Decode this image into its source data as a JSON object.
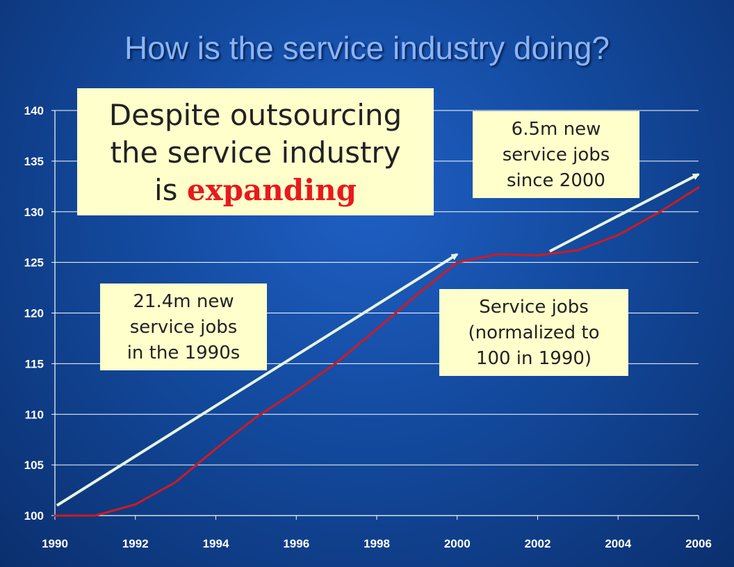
{
  "slide": {
    "title": "How is the service industry doing?"
  },
  "callouts": {
    "headline_line1": "Despite outsourcing",
    "headline_line2": "the service industry",
    "headline_line3_prefix": "is ",
    "headline_emphasis": "expanding",
    "nineties_line1": "21.4m new",
    "nineties_line2": "service jobs",
    "nineties_line3": "in the 1990s",
    "since2000_line1": "6.5m new",
    "since2000_line2": "service jobs",
    "since2000_line3": "since 2000",
    "series_line1": "Service jobs",
    "series_line2": "(normalized to",
    "series_line3": "100 in 1990)"
  },
  "colors": {
    "series_line": "#d11a1f",
    "trend_arrow": "#e8f5e0",
    "gridline": "#ffffff",
    "emphasis": "#e8191e"
  },
  "chart_data": {
    "type": "line",
    "x": [
      1990,
      1991,
      1992,
      1993,
      1994,
      1995,
      1996,
      1997,
      1998,
      1999,
      2000,
      2001,
      2002,
      2003,
      2004,
      2005,
      2006
    ],
    "series": [
      {
        "name": "",
        "values": [
          100,
          100.0,
          101.1,
          103.3,
          106.6,
          109.7,
          112.3,
          115.1,
          118.4,
          121.8,
          125.0,
          125.8,
          125.7,
          126.2,
          127.7,
          129.9,
          132.4
        ]
      }
    ],
    "trend_arrows": [
      {
        "from": [
          1990.05,
          101.0
        ],
        "to": [
          2000.0,
          125.8
        ]
      },
      {
        "from": [
          2002.3,
          126.1
        ],
        "to": [
          2006.0,
          133.7
        ]
      }
    ],
    "xlim": [
      1990,
      2006
    ],
    "ylim": [
      100,
      140
    ],
    "xticks": [
      "1990",
      "1992",
      "1994",
      "1996",
      "1998",
      "2000",
      "2002",
      "2004",
      "2006"
    ],
    "yticks": [
      "100",
      "105",
      "110",
      "115",
      "120",
      "125",
      "130",
      "135",
      "140"
    ],
    "grid": true,
    "xlabel": "",
    "ylabel": ""
  }
}
